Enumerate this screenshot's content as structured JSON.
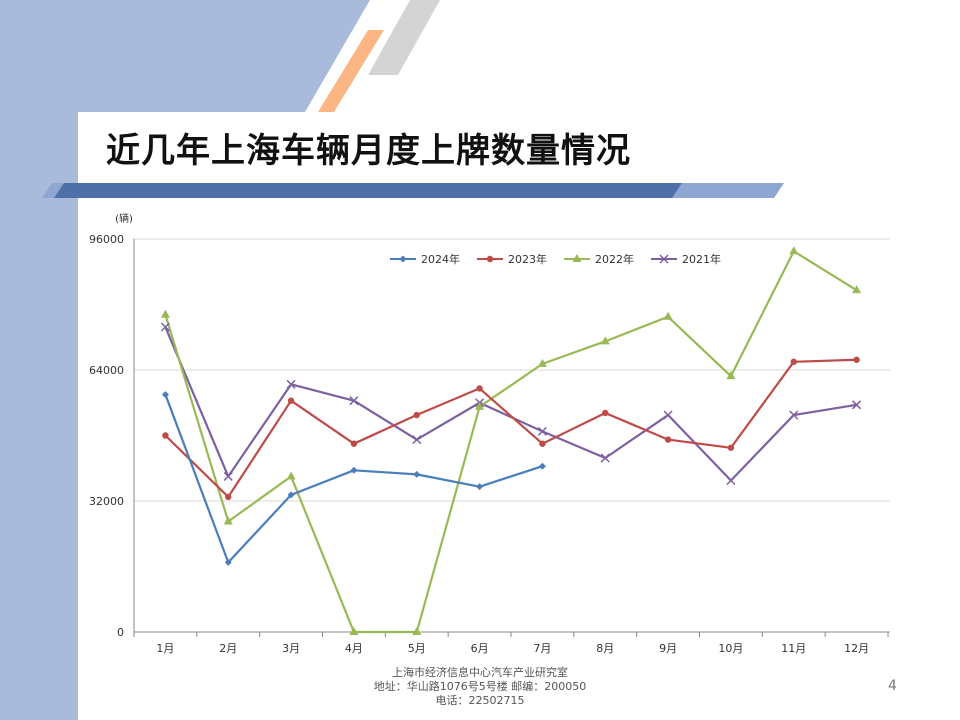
{
  "slide": {
    "title": "近几年上海车辆月度上牌数量情况",
    "page_number": "4",
    "footer": {
      "line1": "上海市经济信息中心汽车产业研究室",
      "line2": "地址：华山路1076号5号楼   邮编：200050",
      "line3": "电话：22502715"
    },
    "colors": {
      "left_band": "#a9bbdb",
      "bar_dark": "#4f6fa8",
      "bar_light": "#8ea6d2",
      "accent_orange": "#fbb684",
      "accent_gray": "#d4d4d4"
    }
  },
  "chart_data": {
    "type": "line",
    "title": "",
    "xlabel": "",
    "ylabel": "(辆)",
    "categories": [
      "1月",
      "2月",
      "3月",
      "4月",
      "5月",
      "6月",
      "7月",
      "8月",
      "9月",
      "10月",
      "11月",
      "12月"
    ],
    "ylim": [
      0,
      96000
    ],
    "yticks": [
      0,
      32000,
      64000,
      96000
    ],
    "grid": true,
    "legend_position": "top",
    "series": [
      {
        "name": "2024年",
        "color": "#4a7ebb",
        "marker": "diamond",
        "values": [
          58000,
          17000,
          33500,
          39500,
          38500,
          35500,
          40500,
          null,
          null,
          null,
          null,
          null
        ]
      },
      {
        "name": "2023年",
        "color": "#be4b48",
        "marker": "circle",
        "values": [
          48000,
          33000,
          56500,
          46000,
          53000,
          59500,
          46000,
          53500,
          47000,
          45000,
          66000,
          66500
        ]
      },
      {
        "name": "2022年",
        "color": "#98b954",
        "marker": "triangle",
        "values": [
          77500,
          27000,
          38000,
          0,
          0,
          55000,
          65500,
          71000,
          77000,
          62500,
          93000,
          83500
        ]
      },
      {
        "name": "2021年",
        "color": "#7d60a0",
        "marker": "x",
        "values": [
          74500,
          38000,
          60500,
          56500,
          47000,
          56000,
          49000,
          42500,
          53000,
          37000,
          53000,
          55500
        ]
      }
    ]
  }
}
